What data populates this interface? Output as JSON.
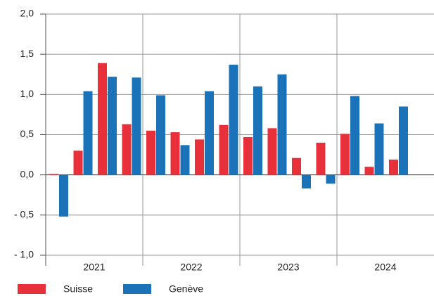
{
  "chart_data": {
    "type": "bar",
    "categories": [
      null,
      null,
      null,
      null,
      null,
      null,
      null,
      null,
      null,
      null,
      null,
      null,
      null,
      null,
      null,
      null
    ],
    "groups": [
      "2021",
      "2022",
      "2023",
      "2024"
    ],
    "series": [
      {
        "name": "Suisse",
        "color": "#e8303a",
        "values": [
          0.01,
          0.3,
          1.39,
          0.63,
          0.55,
          0.53,
          0.44,
          0.62,
          0.47,
          0.58,
          0.21,
          0.4,
          0.51,
          0.1,
          0.19,
          null
        ]
      },
      {
        "name": "Genève",
        "color": "#1a72b8",
        "values": [
          -0.52,
          1.04,
          1.22,
          1.21,
          0.99,
          0.37,
          1.04,
          1.37,
          1.1,
          1.25,
          -0.17,
          -0.11,
          0.98,
          0.64,
          0.85,
          null
        ]
      }
    ],
    "ylim": [
      -1.0,
      2.0
    ],
    "yticks": [
      {
        "value": -1.0,
        "label": "- 1,0"
      },
      {
        "value": -0.5,
        "label": "- 0,5"
      },
      {
        "value": 0,
        "label": "0,0"
      },
      {
        "value": 0.5,
        "label": "0,5"
      },
      {
        "value": 1.0,
        "label": "1,0"
      },
      {
        "value": 1.5,
        "label": "1,5"
      },
      {
        "value": 2.0,
        "label": "2,0"
      }
    ],
    "grid": true
  }
}
